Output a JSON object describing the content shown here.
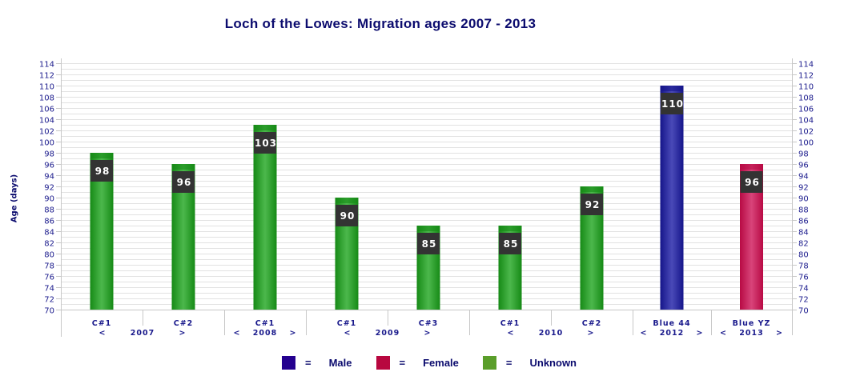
{
  "chart_data": {
    "type": "bar",
    "title": "Loch of the Lowes: Migration ages 2007 - 2013",
    "xlabel": "",
    "ylabel": "Age (days)",
    "ylim": [
      70,
      114
    ],
    "ytick_step": 2,
    "grid": true,
    "legend_position": "bottom",
    "categories": [
      {
        "label": "C#1",
        "value": 98,
        "sex": "Unknown"
      },
      {
        "label": "C#2",
        "value": 96,
        "sex": "Unknown"
      },
      {
        "label": "C#1",
        "value": 103,
        "sex": "Unknown"
      },
      {
        "label": "C#1",
        "value": 90,
        "sex": "Unknown"
      },
      {
        "label": "C#3",
        "value": 85,
        "sex": "Unknown"
      },
      {
        "label": "C#1",
        "value": 85,
        "sex": "Unknown"
      },
      {
        "label": "C#2",
        "value": 92,
        "sex": "Unknown"
      },
      {
        "label": "Blue 44",
        "value": 110,
        "sex": "Male"
      },
      {
        "label": "Blue YZ",
        "value": 96,
        "sex": "Female"
      }
    ],
    "year_groups": [
      {
        "year": "2007",
        "start": 0,
        "end": 1
      },
      {
        "year": "2008",
        "start": 2,
        "end": 2
      },
      {
        "year": "2009",
        "start": 3,
        "end": 4
      },
      {
        "year": "2010",
        "start": 5,
        "end": 6
      },
      {
        "year": "2012",
        "start": 7,
        "end": 7
      },
      {
        "year": "2013",
        "start": 8,
        "end": 8
      }
    ],
    "group_open": "<",
    "group_close": ">",
    "legend": [
      {
        "name": "Male",
        "color": "#24008f"
      },
      {
        "name": "Female",
        "color": "#b8073f"
      },
      {
        "name": "Unknown",
        "color": "#5a9e2a"
      }
    ],
    "legend_separator": "=",
    "bar_colors": {
      "Male": {
        "dark": "#15158a",
        "light": "#4a4ab8"
      },
      "Female": {
        "dark": "#b80a44",
        "light": "#d8447a"
      },
      "Unknown": {
        "dark": "#168a16",
        "light": "#4cb84c"
      }
    }
  }
}
